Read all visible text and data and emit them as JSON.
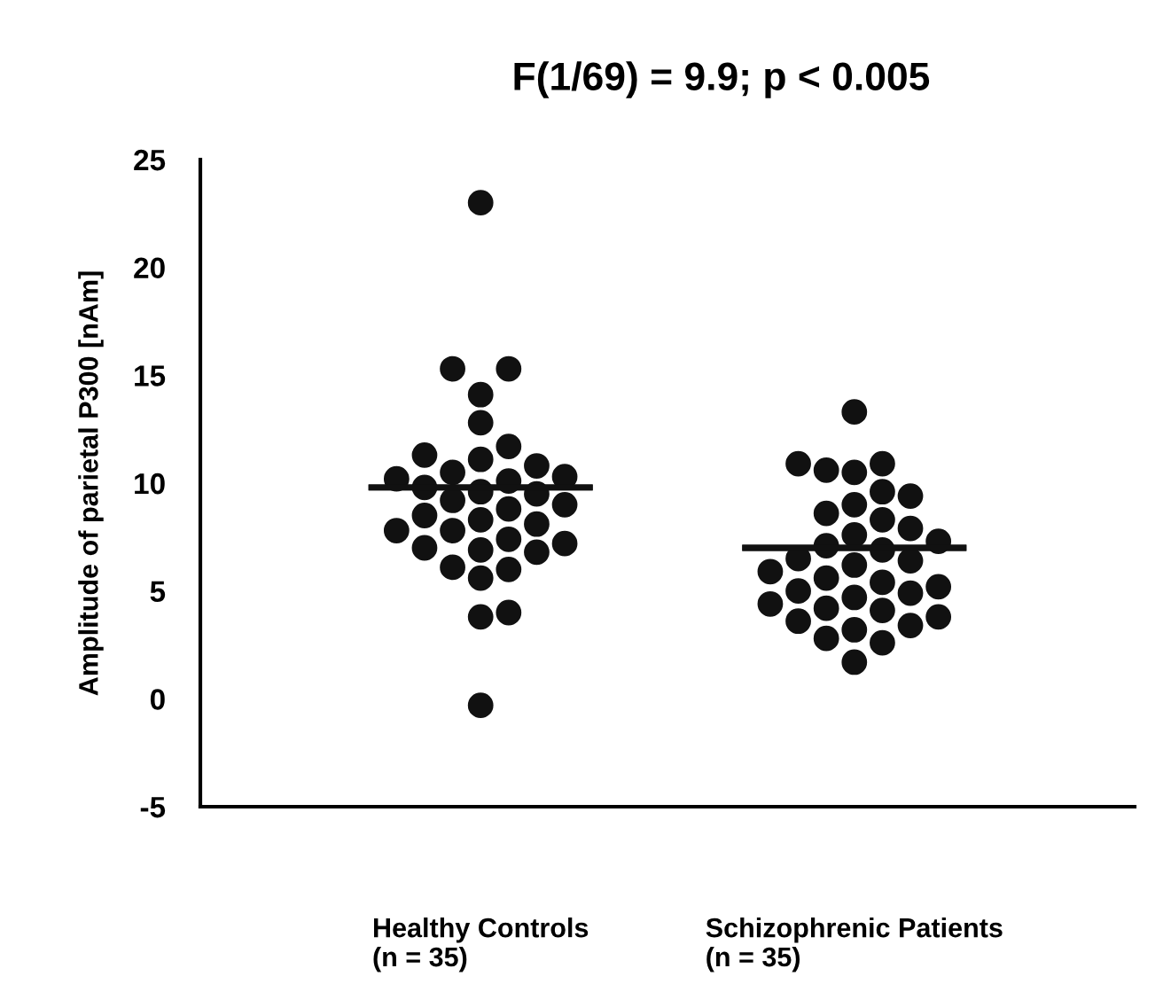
{
  "chart_data": {
    "type": "scatter",
    "title": "F(1/69) = 9.9; p < 0.005",
    "ylabel": "Amplitude of parietal P300 [nAm]",
    "categories": [
      "Healthy Controls\n(n = 35)",
      "Schizophrenic Patients\n(n = 35)"
    ],
    "ylim": [
      -5,
      25
    ],
    "yticks": [
      -5,
      0,
      5,
      10,
      15,
      20,
      25
    ],
    "grid": false,
    "legend": false,
    "marker": "circle",
    "series": [
      {
        "color": "#111111",
        "x": [
          "Healthy Controls\n(n = 35)",
          "Healthy Controls\n(n = 35)",
          "Healthy Controls\n(n = 35)",
          "Healthy Controls\n(n = 35)",
          "Healthy Controls\n(n = 35)",
          "Healthy Controls\n(n = 35)",
          "Healthy Controls\n(n = 35)",
          "Healthy Controls\n(n = 35)",
          "Healthy Controls\n(n = 35)",
          "Healthy Controls\n(n = 35)",
          "Healthy Controls\n(n = 35)",
          "Healthy Controls\n(n = 35)",
          "Healthy Controls\n(n = 35)",
          "Healthy Controls\n(n = 35)",
          "Healthy Controls\n(n = 35)",
          "Healthy Controls\n(n = 35)",
          "Healthy Controls\n(n = 35)",
          "Healthy Controls\n(n = 35)",
          "Healthy Controls\n(n = 35)",
          "Healthy Controls\n(n = 35)",
          "Healthy Controls\n(n = 35)",
          "Healthy Controls\n(n = 35)",
          "Healthy Controls\n(n = 35)",
          "Healthy Controls\n(n = 35)",
          "Healthy Controls\n(n = 35)",
          "Healthy Controls\n(n = 35)",
          "Healthy Controls\n(n = 35)",
          "Healthy Controls\n(n = 35)",
          "Healthy Controls\n(n = 35)",
          "Healthy Controls\n(n = 35)",
          "Healthy Controls\n(n = 35)",
          "Healthy Controls\n(n = 35)",
          "Healthy Controls\n(n = 35)",
          "Healthy Controls\n(n = 35)",
          "Healthy Controls\n(n = 35)"
        ],
        "values": [
          15.3,
          14.1,
          12.8,
          10.1,
          9.5,
          8.5,
          8.1,
          6.0,
          10.8,
          9.0,
          8.3,
          7.2,
          6.8,
          4.0,
          11.7,
          10.5,
          9.8,
          7.8,
          7.4,
          5.6,
          3.8,
          15.3,
          11.1,
          10.2,
          9.2,
          7.0,
          6.9,
          -0.3,
          23.0,
          11.3,
          10.3,
          9.6,
          8.8,
          7.8,
          6.1
        ]
      },
      {
        "color": "#111111",
        "x": [
          "Schizophrenic Patients\n(n = 35)",
          "Schizophrenic Patients\n(n = 35)",
          "Schizophrenic Patients\n(n = 35)",
          "Schizophrenic Patients\n(n = 35)",
          "Schizophrenic Patients\n(n = 35)",
          "Schizophrenic Patients\n(n = 35)",
          "Schizophrenic Patients\n(n = 35)",
          "Schizophrenic Patients\n(n = 35)",
          "Schizophrenic Patients\n(n = 35)",
          "Schizophrenic Patients\n(n = 35)",
          "Schizophrenic Patients\n(n = 35)",
          "Schizophrenic Patients\n(n = 35)",
          "Schizophrenic Patients\n(n = 35)",
          "Schizophrenic Patients\n(n = 35)",
          "Schizophrenic Patients\n(n = 35)",
          "Schizophrenic Patients\n(n = 35)",
          "Schizophrenic Patients\n(n = 35)",
          "Schizophrenic Patients\n(n = 35)",
          "Schizophrenic Patients\n(n = 35)",
          "Schizophrenic Patients\n(n = 35)",
          "Schizophrenic Patients\n(n = 35)",
          "Schizophrenic Patients\n(n = 35)",
          "Schizophrenic Patients\n(n = 35)",
          "Schizophrenic Patients\n(n = 35)",
          "Schizophrenic Patients\n(n = 35)",
          "Schizophrenic Patients\n(n = 35)",
          "Schizophrenic Patients\n(n = 35)",
          "Schizophrenic Patients\n(n = 35)",
          "Schizophrenic Patients\n(n = 35)",
          "Schizophrenic Patients\n(n = 35)",
          "Schizophrenic Patients\n(n = 35)",
          "Schizophrenic Patients\n(n = 35)",
          "Schizophrenic Patients\n(n = 35)",
          "Schizophrenic Patients\n(n = 35)",
          "Schizophrenic Patients\n(n = 35)"
        ],
        "values": [
          10.9,
          8.3,
          6.5,
          5.4,
          4.2,
          3.4,
          1.7,
          10.5,
          9.4,
          7.9,
          5.0,
          3.6,
          9.0,
          7.3,
          6.9,
          2.6,
          10.9,
          7.1,
          5.9,
          4.7,
          4.1,
          13.3,
          10.6,
          6.4,
          5.6,
          4.9,
          3.8,
          2.8,
          9.6,
          7.6,
          5.2,
          4.4,
          3.2,
          8.6,
          6.2
        ]
      },
      {
        "type": "box",
        "color": "#111111",
        "boxes": [
          {
            "low": 9.8,
            "q1": 9.8,
            "median": 9.8,
            "q3": 9.8,
            "high": 9.8
          },
          {
            "low": 7.0,
            "q1": 7.0,
            "median": 7.0,
            "q3": 7.0,
            "high": 7.0
          }
        ]
      }
    ]
  }
}
